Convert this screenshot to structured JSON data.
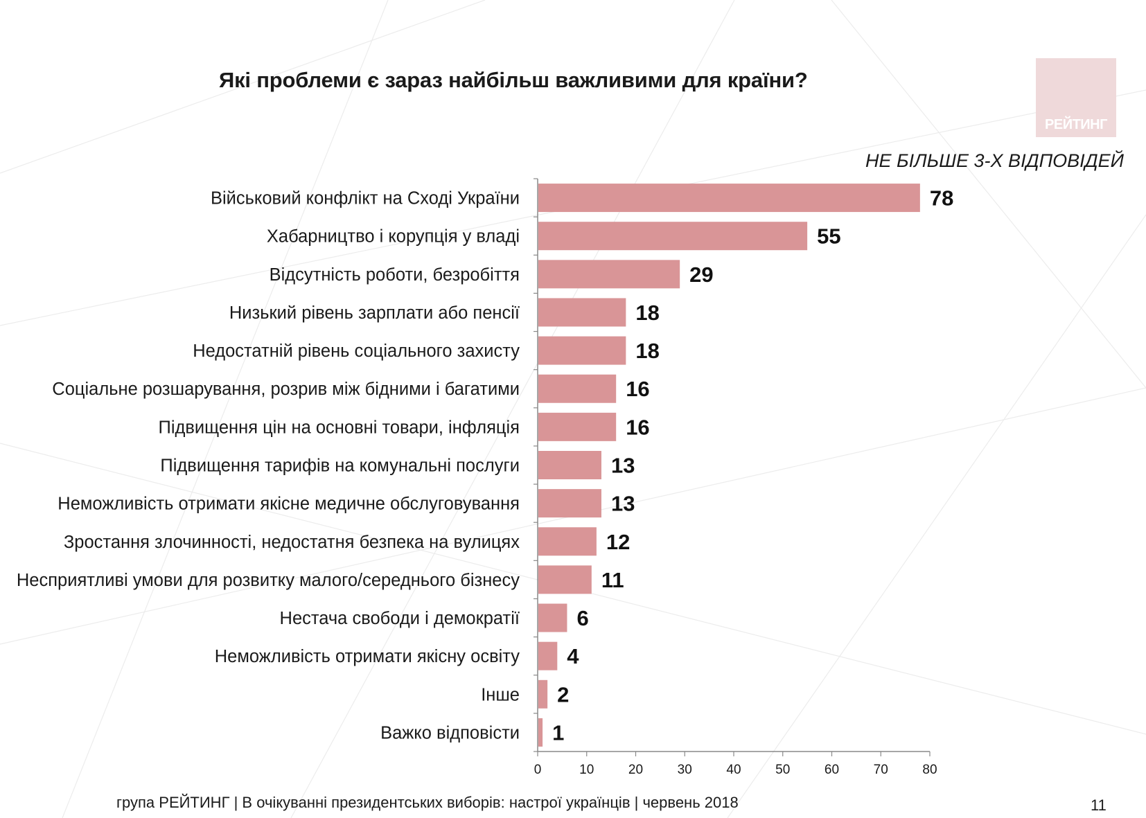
{
  "title": "Які проблеми є зараз найбільш важливими для країни?",
  "logo_text": "РЕЙТИНГ",
  "note": "НЕ БІЛЬШЕ 3-Х ВІДПОВІДЕЙ",
  "footer": "група РЕЙТИНГ  | В очікуванні президентських виборів: настрої українців |  червень 2018",
  "page_number": "11",
  "colors": {
    "bar": "#d99597",
    "axis": "#888888",
    "logo_bg": "#efd9da"
  },
  "chart_data": {
    "type": "bar",
    "orientation": "horizontal",
    "title": "Які проблеми є зараз найбільш важливими для країни?",
    "xlim": [
      0,
      80
    ],
    "xticks": [
      0,
      10,
      20,
      30,
      40,
      50,
      60,
      70,
      80
    ],
    "grid": false,
    "categories": [
      "Військовий конфлікт на Сході України",
      "Хабарництво і корупція у владі",
      "Відсутність роботи, безробіття",
      "Низький рівень зарплати або пенсії",
      "Недостатній рівень соціального захисту",
      "Соціальне розшарування, розрив між бідними і багатими",
      "Підвищення цін на основні товари, інфляція",
      "Підвищення тарифів на комунальні послуги",
      "Неможливість отримати якісне медичне обслуговування",
      "Зростання злочинності, недостатня безпека на вулицях",
      "Несприятливі умови для розвитку малого/середнього бізнесу",
      "Нестача свободи і демократії",
      "Неможливість отримати якісну освіту",
      "Інше",
      "Важко відповісти"
    ],
    "values": [
      78,
      55,
      29,
      18,
      18,
      16,
      16,
      13,
      13,
      12,
      11,
      6,
      4,
      2,
      1
    ]
  }
}
